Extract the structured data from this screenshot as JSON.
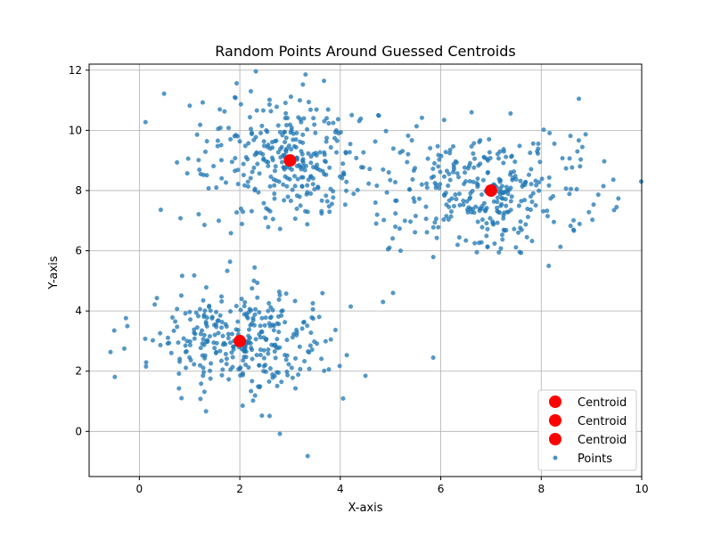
{
  "chart_data": {
    "type": "scatter",
    "title": "Random Points Around Guessed Centroids",
    "xlabel": "X-axis",
    "ylabel": "Y-axis",
    "xlim": [
      -1.0,
      10.0
    ],
    "ylim": [
      -1.5,
      12.2
    ],
    "xticks": [
      0,
      2,
      4,
      6,
      8,
      10
    ],
    "yticks": [
      0,
      2,
      4,
      6,
      8,
      10,
      12
    ],
    "grid": true,
    "legend_position": "lower-right",
    "colors": {
      "points": "#1f77b4",
      "centroid": "#ff0000"
    },
    "legend": [
      {
        "label": "Centroid",
        "kind": "centroid"
      },
      {
        "label": "Centroid",
        "kind": "centroid"
      },
      {
        "label": "Centroid",
        "kind": "centroid"
      },
      {
        "label": "Points",
        "kind": "points"
      }
    ],
    "centroids": [
      {
        "label": "Centroid",
        "x": 3,
        "y": 9
      },
      {
        "label": "Centroid",
        "x": 7,
        "y": 8
      },
      {
        "label": "Centroid",
        "x": 2,
        "y": 3
      }
    ],
    "points": {
      "label": "Points",
      "clusters": [
        {
          "cx": 2,
          "cy": 3,
          "sx": 0.85,
          "sy": 0.85,
          "n": 330
        },
        {
          "cx": 3,
          "cy": 9,
          "sx": 0.95,
          "sy": 1.05,
          "n": 330
        },
        {
          "cx": 7,
          "cy": 8,
          "sx": 1.0,
          "sy": 1.0,
          "n": 330
        }
      ],
      "extra": [
        [
          3.35,
          -0.82
        ],
        [
          5.85,
          2.45
        ],
        [
          -0.5,
          3.35
        ],
        [
          -0.3,
          2.75
        ],
        [
          4.85,
          4.3
        ],
        [
          5.05,
          4.6
        ],
        [
          4.95,
          6.05
        ],
        [
          5.2,
          6.0
        ],
        [
          9.5,
          7.45
        ],
        [
          9.45,
          7.35
        ],
        [
          8.75,
          11.05
        ],
        [
          4.7,
          7.6
        ]
      ]
    }
  }
}
